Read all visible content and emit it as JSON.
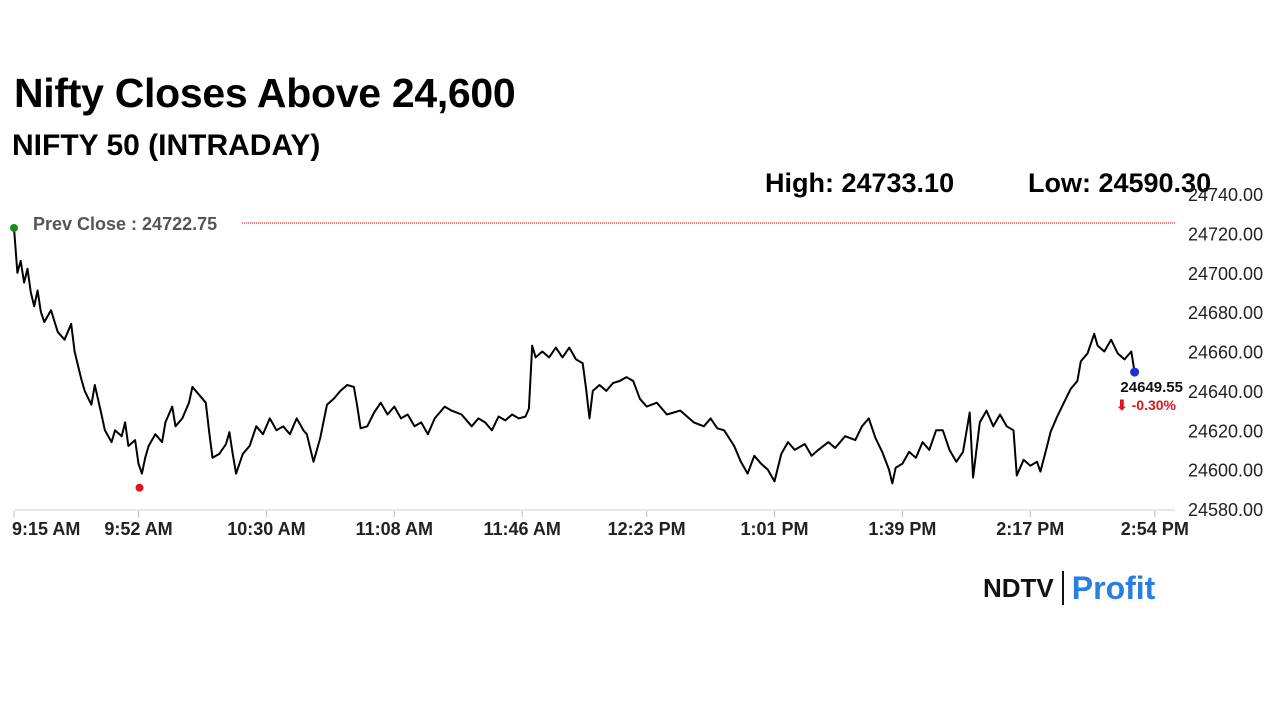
{
  "header": {
    "title": "Nifty Closes Above 24,600",
    "subtitle": "NIFTY 50 (INTRADAY)",
    "high": "High: 24733.10",
    "low": "Low: 24590.30"
  },
  "brand": {
    "left": "NDTV",
    "right": "Profit",
    "accent": "#2a7de1"
  },
  "colors": {
    "line": "#000000",
    "prev_close": "#cc0000",
    "start_dot": "#1a8a1a",
    "low_dot": "#e0141e",
    "end_dot": "#1f2fd6",
    "change": "#e0141e"
  },
  "chart_data": {
    "type": "line",
    "title": "NIFTY 50 (INTRADAY)",
    "xlabel": "",
    "ylabel": "",
    "ylim": [
      24580,
      24740
    ],
    "yticks": [
      "24740.00",
      "24720.00",
      "24700.00",
      "24680.00",
      "24660.00",
      "24640.00",
      "24620.00",
      "24600.00",
      "24580.00"
    ],
    "xticks": [
      "9:15 AM",
      "9:52 AM",
      "10:30 AM",
      "11:08 AM",
      "11:46 AM",
      "12:23 PM",
      "1:01 PM",
      "1:39 PM",
      "2:17 PM",
      "2:54 PM"
    ],
    "prev_close_label": "Prev Close : 24722.75",
    "prev_close": 24722.75,
    "last_value_label": "24649.55",
    "change_label": "⬇ -0.30%",
    "series": [
      {
        "points": [
          [
            "9:15",
            24722.75
          ],
          [
            "9:16",
            24700
          ],
          [
            "9:17",
            24706
          ],
          [
            "9:18",
            24695
          ],
          [
            "9:19",
            24702
          ],
          [
            "9:20",
            24690
          ],
          [
            "9:21",
            24683
          ],
          [
            "9:22",
            24691
          ],
          [
            "9:23",
            24680
          ],
          [
            "9:24",
            24675
          ],
          [
            "9:26",
            24681
          ],
          [
            "9:28",
            24670
          ],
          [
            "9:30",
            24666
          ],
          [
            "9:32",
            24674
          ],
          [
            "9:33",
            24660
          ],
          [
            "9:35",
            24646
          ],
          [
            "9:36",
            24640
          ],
          [
            "9:38",
            24633
          ],
          [
            "9:39",
            24643
          ],
          [
            "9:41",
            24628
          ],
          [
            "9:42",
            24620
          ],
          [
            "9:44",
            24614
          ],
          [
            "9:45",
            24620
          ],
          [
            "9:47",
            24617
          ],
          [
            "9:48",
            24624
          ],
          [
            "9:49",
            24612
          ],
          [
            "9:51",
            24615
          ],
          [
            "9:52",
            24603
          ],
          [
            "9:53",
            24598
          ],
          [
            "9:54",
            24606
          ],
          [
            "9:55",
            24612
          ],
          [
            "9:57",
            24618
          ],
          [
            "9:59",
            24614
          ],
          [
            "10:00",
            24624
          ],
          [
            "10:02",
            24632
          ],
          [
            "10:03",
            24622
          ],
          [
            "10:05",
            24626
          ],
          [
            "10:07",
            24634
          ],
          [
            "10:08",
            24642
          ],
          [
            "10:10",
            24638
          ],
          [
            "10:12",
            24634
          ],
          [
            "10:13",
            24619
          ],
          [
            "10:14",
            24606
          ],
          [
            "10:16",
            24608
          ],
          [
            "10:18",
            24613
          ],
          [
            "10:19",
            24619
          ],
          [
            "10:20",
            24608
          ],
          [
            "10:21",
            24598
          ],
          [
            "10:23",
            24608
          ],
          [
            "10:25",
            24612
          ],
          [
            "10:27",
            24622
          ],
          [
            "10:29",
            24618
          ],
          [
            "10:31",
            24626
          ],
          [
            "10:33",
            24620
          ],
          [
            "10:35",
            24622
          ],
          [
            "10:37",
            24618
          ],
          [
            "10:39",
            24626
          ],
          [
            "10:41",
            24620
          ],
          [
            "10:42",
            24618
          ],
          [
            "10:44",
            24604
          ],
          [
            "10:46",
            24616
          ],
          [
            "10:48",
            24633
          ],
          [
            "10:50",
            24636
          ],
          [
            "10:52",
            24640
          ],
          [
            "10:54",
            24643
          ],
          [
            "10:56",
            24642
          ],
          [
            "10:57",
            24632
          ],
          [
            "10:58",
            24621
          ],
          [
            "11:00",
            24622
          ],
          [
            "11:02",
            24629
          ],
          [
            "11:04",
            24634
          ],
          [
            "11:06",
            24628
          ],
          [
            "11:08",
            24632
          ],
          [
            "11:10",
            24626
          ],
          [
            "11:12",
            24628
          ],
          [
            "11:14",
            24622
          ],
          [
            "11:16",
            24624
          ],
          [
            "11:18",
            24618
          ],
          [
            "11:20",
            24626
          ],
          [
            "11:23",
            24632
          ],
          [
            "11:25",
            24630
          ],
          [
            "11:28",
            24628
          ],
          [
            "11:31",
            24622
          ],
          [
            "11:33",
            24626
          ],
          [
            "11:35",
            24624
          ],
          [
            "11:37",
            24620
          ],
          [
            "11:39",
            24627
          ],
          [
            "11:41",
            24625
          ],
          [
            "11:43",
            24628
          ],
          [
            "11:45",
            24626
          ],
          [
            "11:47",
            24627
          ],
          [
            "11:48",
            24631
          ],
          [
            "11:49",
            24663
          ],
          [
            "11:50",
            24657
          ],
          [
            "11:52",
            24660
          ],
          [
            "11:54",
            24657
          ],
          [
            "11:56",
            24662
          ],
          [
            "11:58",
            24657
          ],
          [
            "12:00",
            24662
          ],
          [
            "12:02",
            24656
          ],
          [
            "12:04",
            24654
          ],
          [
            "12:05",
            24641
          ],
          [
            "12:06",
            24626
          ],
          [
            "12:07",
            24640
          ],
          [
            "12:09",
            24643
          ],
          [
            "12:11",
            24640
          ],
          [
            "12:13",
            24644
          ],
          [
            "12:15",
            24645
          ],
          [
            "12:17",
            24647
          ],
          [
            "12:19",
            24645
          ],
          [
            "12:21",
            24636
          ],
          [
            "12:23",
            24632
          ],
          [
            "12:26",
            24634
          ],
          [
            "12:29",
            24628
          ],
          [
            "12:33",
            24630
          ],
          [
            "12:37",
            24624
          ],
          [
            "12:40",
            24622
          ],
          [
            "12:42",
            24626
          ],
          [
            "12:44",
            24621
          ],
          [
            "12:46",
            24620
          ],
          [
            "12:49",
            24612
          ],
          [
            "12:51",
            24604
          ],
          [
            "12:53",
            24598
          ],
          [
            "12:55",
            24607
          ],
          [
            "12:57",
            24603
          ],
          [
            "12:59",
            24600
          ],
          [
            "13:01",
            24594
          ],
          [
            "13:03",
            24608
          ],
          [
            "13:05",
            24614
          ],
          [
            "13:07",
            24610
          ],
          [
            "13:10",
            24613
          ],
          [
            "13:12",
            24607
          ],
          [
            "13:14",
            24610
          ],
          [
            "13:17",
            24614
          ],
          [
            "13:19",
            24611
          ],
          [
            "13:22",
            24617
          ],
          [
            "13:25",
            24615
          ],
          [
            "13:27",
            24622
          ],
          [
            "13:29",
            24626
          ],
          [
            "13:31",
            24616
          ],
          [
            "13:33",
            24609
          ],
          [
            "13:35",
            24600
          ],
          [
            "13:36",
            24593
          ],
          [
            "13:37",
            24601
          ],
          [
            "13:39",
            24603
          ],
          [
            "13:41",
            24609
          ],
          [
            "13:43",
            24606
          ],
          [
            "13:45",
            24614
          ],
          [
            "13:47",
            24610
          ],
          [
            "13:49",
            24620
          ],
          [
            "13:51",
            24620
          ],
          [
            "13:53",
            24610
          ],
          [
            "13:55",
            24604
          ],
          [
            "13:57",
            24609
          ],
          [
            "13:59",
            24629
          ],
          [
            "14:00",
            24596
          ],
          [
            "14:02",
            24624
          ],
          [
            "14:04",
            24630
          ],
          [
            "14:06",
            24622
          ],
          [
            "14:08",
            24628
          ],
          [
            "14:10",
            24622
          ],
          [
            "14:12",
            24620
          ],
          [
            "14:13",
            24597
          ],
          [
            "14:15",
            24605
          ],
          [
            "14:17",
            24602
          ],
          [
            "14:19",
            24604
          ],
          [
            "14:20",
            24599
          ],
          [
            "14:22",
            24612
          ],
          [
            "14:23",
            24619
          ],
          [
            "14:25",
            24627
          ],
          [
            "14:27",
            24634
          ],
          [
            "14:29",
            24641
          ],
          [
            "14:31",
            24645
          ],
          [
            "14:32",
            24655
          ],
          [
            "14:34",
            24659
          ],
          [
            "14:36",
            24669
          ],
          [
            "14:37",
            24663
          ],
          [
            "14:39",
            24660
          ],
          [
            "14:41",
            24666
          ],
          [
            "14:43",
            24659
          ],
          [
            "14:45",
            24656
          ],
          [
            "14:47",
            24660
          ],
          [
            "14:48",
            24649.55
          ]
        ]
      }
    ],
    "markers": {
      "start": [
        "9:15",
        24722.75
      ],
      "low": [
        "9:52",
        24590.3
      ],
      "end": [
        "14:48",
        24649.55
      ]
    }
  }
}
